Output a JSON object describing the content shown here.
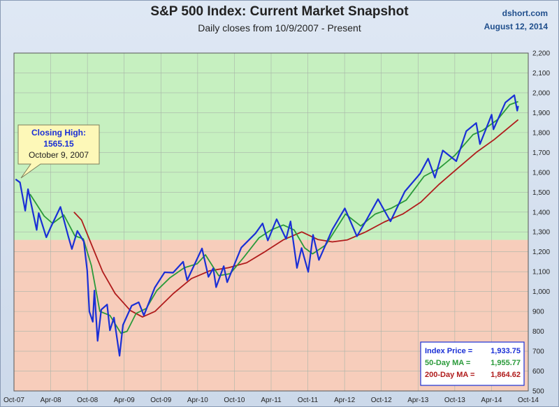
{
  "header": {
    "source": "dshort.com",
    "date": "August 12, 2014"
  },
  "chart_data": {
    "type": "line",
    "title": "S&P 500 Index: Current Market Snapshot",
    "subtitle": "Daily closes from 10/9/2007 - Present",
    "x_ticks": [
      "Oct-07",
      "Apr-08",
      "Oct-08",
      "Apr-09",
      "Oct-09",
      "Apr-10",
      "Oct-10",
      "Apr-11",
      "Oct-11",
      "Apr-12",
      "Oct-12",
      "Apr-13",
      "Oct-13",
      "Apr-14",
      "Oct-14"
    ],
    "y_ticks": [
      "500",
      "600",
      "700",
      "800",
      "900",
      "1,000",
      "1,100",
      "1,200",
      "1,300",
      "1,400",
      "1,500",
      "1,600",
      "1,700",
      "1,800",
      "1,900",
      "2,000",
      "2,100",
      "2,200"
    ],
    "ylim": [
      500,
      2200
    ],
    "xlim": [
      "2007-10-01",
      "2014-10-01"
    ],
    "background_split_value": 1260,
    "background_colors": {
      "upper": "#c6f0c0",
      "lower": "#f7cdbb"
    },
    "series": [
      {
        "name": "Index Price",
        "color": "#1a2fd6",
        "points": [
          [
            "2007-10-09",
            1565
          ],
          [
            "2007-10-31",
            1549
          ],
          [
            "2007-11-26",
            1407
          ],
          [
            "2007-12-10",
            1515
          ],
          [
            "2008-01-22",
            1310
          ],
          [
            "2008-02-01",
            1395
          ],
          [
            "2008-03-10",
            1273
          ],
          [
            "2008-03-31",
            1322
          ],
          [
            "2008-05-19",
            1426
          ],
          [
            "2008-06-27",
            1278
          ],
          [
            "2008-07-15",
            1214
          ],
          [
            "2008-08-11",
            1305
          ],
          [
            "2008-09-12",
            1252
          ],
          [
            "2008-09-29",
            1106
          ],
          [
            "2008-10-10",
            899
          ],
          [
            "2008-10-27",
            848
          ],
          [
            "2008-11-04",
            1005
          ],
          [
            "2008-11-20",
            752
          ],
          [
            "2008-12-08",
            909
          ],
          [
            "2009-01-06",
            935
          ],
          [
            "2009-01-20",
            805
          ],
          [
            "2009-02-09",
            869
          ],
          [
            "2009-03-09",
            677
          ],
          [
            "2009-03-26",
            832
          ],
          [
            "2009-05-08",
            929
          ],
          [
            "2009-06-12",
            946
          ],
          [
            "2009-07-08",
            880
          ],
          [
            "2009-08-31",
            1020
          ],
          [
            "2009-10-19",
            1097
          ],
          [
            "2009-11-30",
            1095
          ],
          [
            "2010-01-19",
            1150
          ],
          [
            "2010-02-08",
            1057
          ],
          [
            "2010-04-23",
            1217
          ],
          [
            "2010-05-25",
            1074
          ],
          [
            "2010-06-18",
            1117
          ],
          [
            "2010-07-02",
            1022
          ],
          [
            "2010-08-09",
            1128
          ],
          [
            "2010-08-26",
            1047
          ],
          [
            "2010-11-04",
            1221
          ],
          [
            "2011-01-14",
            1293
          ],
          [
            "2011-02-18",
            1343
          ],
          [
            "2011-03-16",
            1257
          ],
          [
            "2011-04-29",
            1364
          ],
          [
            "2011-06-15",
            1265
          ],
          [
            "2011-07-07",
            1353
          ],
          [
            "2011-08-08",
            1119
          ],
          [
            "2011-08-31",
            1219
          ],
          [
            "2011-10-03",
            1099
          ],
          [
            "2011-10-27",
            1285
          ],
          [
            "2011-11-25",
            1159
          ],
          [
            "2012-01-31",
            1312
          ],
          [
            "2012-04-02",
            1419
          ],
          [
            "2012-06-01",
            1278
          ],
          [
            "2012-07-20",
            1363
          ],
          [
            "2012-09-14",
            1465
          ],
          [
            "2012-11-15",
            1353
          ],
          [
            "2013-01-25",
            1503
          ],
          [
            "2013-04-11",
            1593
          ],
          [
            "2013-05-21",
            1669
          ],
          [
            "2013-06-24",
            1573
          ],
          [
            "2013-08-02",
            1710
          ],
          [
            "2013-10-08",
            1656
          ],
          [
            "2013-11-27",
            1807
          ],
          [
            "2014-01-15",
            1848
          ],
          [
            "2014-02-03",
            1742
          ],
          [
            "2014-04-02",
            1890
          ],
          [
            "2014-04-11",
            1816
          ],
          [
            "2014-06-09",
            1951
          ],
          [
            "2014-07-24",
            1988
          ],
          [
            "2014-08-07",
            1910
          ],
          [
            "2014-08-12",
            1934
          ]
        ]
      },
      {
        "name": "50-Day MA",
        "color": "#2a9a3a",
        "points": [
          [
            "2007-12-20",
            1490
          ],
          [
            "2008-02-28",
            1380
          ],
          [
            "2008-04-10",
            1343
          ],
          [
            "2008-06-05",
            1385
          ],
          [
            "2008-07-30",
            1280
          ],
          [
            "2008-09-10",
            1265
          ],
          [
            "2008-10-20",
            1130
          ],
          [
            "2008-12-01",
            900
          ],
          [
            "2009-01-20",
            880
          ],
          [
            "2009-03-16",
            790
          ],
          [
            "2009-04-15",
            800
          ],
          [
            "2009-05-30",
            890
          ],
          [
            "2009-07-20",
            915
          ],
          [
            "2009-09-10",
            1005
          ],
          [
            "2009-11-15",
            1070
          ],
          [
            "2010-01-25",
            1120
          ],
          [
            "2010-03-30",
            1140
          ],
          [
            "2010-05-10",
            1185
          ],
          [
            "2010-07-15",
            1080
          ],
          [
            "2010-09-10",
            1090
          ],
          [
            "2010-11-15",
            1170
          ],
          [
            "2011-01-31",
            1270
          ],
          [
            "2011-04-01",
            1310
          ],
          [
            "2011-06-01",
            1335
          ],
          [
            "2011-07-25",
            1310
          ],
          [
            "2011-09-15",
            1220
          ],
          [
            "2011-10-25",
            1190
          ],
          [
            "2011-12-30",
            1235
          ],
          [
            "2012-04-05",
            1390
          ],
          [
            "2012-06-20",
            1330
          ],
          [
            "2012-08-31",
            1390
          ],
          [
            "2012-11-20",
            1420
          ],
          [
            "2013-02-01",
            1460
          ],
          [
            "2013-05-01",
            1580
          ],
          [
            "2013-07-15",
            1620
          ],
          [
            "2013-10-01",
            1685
          ],
          [
            "2013-12-31",
            1790
          ],
          [
            "2014-02-15",
            1810
          ],
          [
            "2014-05-01",
            1865
          ],
          [
            "2014-07-01",
            1940
          ],
          [
            "2014-08-12",
            1956
          ]
        ]
      },
      {
        "name": "200-Day MA",
        "color": "#b01c1c",
        "points": [
          [
            "2008-07-25",
            1400
          ],
          [
            "2008-09-01",
            1360
          ],
          [
            "2008-10-15",
            1250
          ],
          [
            "2008-12-15",
            1100
          ],
          [
            "2009-02-15",
            990
          ],
          [
            "2009-05-01",
            905
          ],
          [
            "2009-07-01",
            872
          ],
          [
            "2009-09-01",
            900
          ],
          [
            "2009-12-01",
            990
          ],
          [
            "2010-03-01",
            1065
          ],
          [
            "2010-06-01",
            1105
          ],
          [
            "2010-09-01",
            1120
          ],
          [
            "2010-12-01",
            1145
          ],
          [
            "2011-03-01",
            1200
          ],
          [
            "2011-06-01",
            1260
          ],
          [
            "2011-09-01",
            1300
          ],
          [
            "2011-11-20",
            1262
          ],
          [
            "2012-01-31",
            1250
          ],
          [
            "2012-04-15",
            1260
          ],
          [
            "2012-07-15",
            1300
          ],
          [
            "2012-10-15",
            1350
          ],
          [
            "2013-01-15",
            1390
          ],
          [
            "2013-04-15",
            1450
          ],
          [
            "2013-07-15",
            1540
          ],
          [
            "2013-10-15",
            1620
          ],
          [
            "2014-01-15",
            1700
          ],
          [
            "2014-04-15",
            1765
          ],
          [
            "2014-08-12",
            1865
          ]
        ]
      }
    ],
    "callout": {
      "title": "Closing High:",
      "value": "1565.15",
      "date": "October 9, 2007"
    },
    "legend": {
      "placement": "bottom-right",
      "rows": [
        {
          "label": "Index Price =",
          "value": "1,933.75",
          "color": "#1a2fd6"
        },
        {
          "label": "50-Day MA =",
          "value": "1,955.77",
          "color": "#2a9a3a"
        },
        {
          "label": "200-Day MA =",
          "value": "1,864.62",
          "color": "#b01c1c"
        }
      ]
    }
  }
}
